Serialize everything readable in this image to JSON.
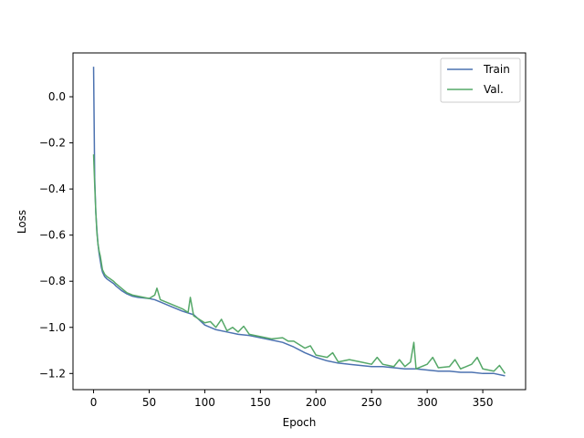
{
  "chart_data": {
    "type": "line",
    "title": "",
    "xlabel": "Epoch",
    "ylabel": "Loss",
    "xlim": [
      -18.5,
      388.5
    ],
    "ylim": [
      -1.27,
      0.19
    ],
    "x_ticks": [
      0,
      50,
      100,
      150,
      200,
      250,
      300,
      350
    ],
    "y_ticks": [
      0.0,
      -0.2,
      -0.4,
      -0.6,
      -0.8,
      -1.0,
      -1.2
    ],
    "y_tick_labels": [
      "0.0",
      "−0.2",
      "−0.4",
      "−0.6",
      "−0.8",
      "−1.0",
      "−1.2"
    ],
    "grid": false,
    "legend_position": "upper right",
    "series": [
      {
        "name": "Train",
        "color": "#4c72b0",
        "x": [
          0,
          1,
          2,
          3,
          4,
          5,
          6,
          7,
          8,
          10,
          12,
          15,
          18,
          20,
          25,
          30,
          35,
          40,
          50,
          55,
          60,
          70,
          80,
          90,
          100,
          110,
          120,
          130,
          140,
          150,
          160,
          170,
          180,
          190,
          200,
          210,
          220,
          230,
          240,
          250,
          260,
          270,
          280,
          290,
          300,
          310,
          320,
          330,
          340,
          350,
          360,
          370
        ],
        "y": [
          0.13,
          -0.35,
          -0.5,
          -0.58,
          -0.64,
          -0.68,
          -0.71,
          -0.74,
          -0.76,
          -0.78,
          -0.79,
          -0.8,
          -0.81,
          -0.82,
          -0.84,
          -0.855,
          -0.865,
          -0.87,
          -0.875,
          -0.88,
          -0.89,
          -0.91,
          -0.93,
          -0.945,
          -0.99,
          -1.01,
          -1.02,
          -1.03,
          -1.035,
          -1.045,
          -1.055,
          -1.065,
          -1.085,
          -1.11,
          -1.13,
          -1.145,
          -1.155,
          -1.16,
          -1.165,
          -1.17,
          -1.17,
          -1.175,
          -1.18,
          -1.18,
          -1.185,
          -1.19,
          -1.19,
          -1.195,
          -1.195,
          -1.2,
          -1.2,
          -1.21
        ]
      },
      {
        "name": "Val.",
        "color": "#55a868",
        "x": [
          0,
          1,
          2,
          3,
          4,
          5,
          6,
          7,
          8,
          10,
          12,
          15,
          18,
          20,
          25,
          30,
          35,
          40,
          45,
          50,
          55,
          57,
          60,
          70,
          80,
          85,
          87,
          90,
          100,
          105,
          110,
          115,
          120,
          125,
          130,
          135,
          140,
          150,
          160,
          170,
          175,
          180,
          190,
          195,
          200,
          210,
          215,
          220,
          230,
          240,
          250,
          255,
          260,
          270,
          275,
          280,
          285,
          288,
          290,
          300,
          305,
          310,
          320,
          325,
          330,
          340,
          345,
          350,
          360,
          365,
          370
        ],
        "y": [
          -0.25,
          -0.38,
          -0.5,
          -0.59,
          -0.64,
          -0.67,
          -0.69,
          -0.72,
          -0.75,
          -0.77,
          -0.78,
          -0.79,
          -0.8,
          -0.81,
          -0.83,
          -0.85,
          -0.86,
          -0.865,
          -0.87,
          -0.875,
          -0.86,
          -0.83,
          -0.88,
          -0.9,
          -0.92,
          -0.935,
          -0.87,
          -0.95,
          -0.98,
          -0.975,
          -1.0,
          -0.965,
          -1.015,
          -1.0,
          -1.02,
          -0.995,
          -1.03,
          -1.04,
          -1.05,
          -1.045,
          -1.06,
          -1.06,
          -1.09,
          -1.08,
          -1.12,
          -1.13,
          -1.11,
          -1.15,
          -1.14,
          -1.15,
          -1.16,
          -1.13,
          -1.16,
          -1.17,
          -1.14,
          -1.17,
          -1.15,
          -1.065,
          -1.18,
          -1.16,
          -1.13,
          -1.175,
          -1.17,
          -1.14,
          -1.18,
          -1.16,
          -1.13,
          -1.18,
          -1.19,
          -1.165,
          -1.2
        ]
      }
    ]
  }
}
